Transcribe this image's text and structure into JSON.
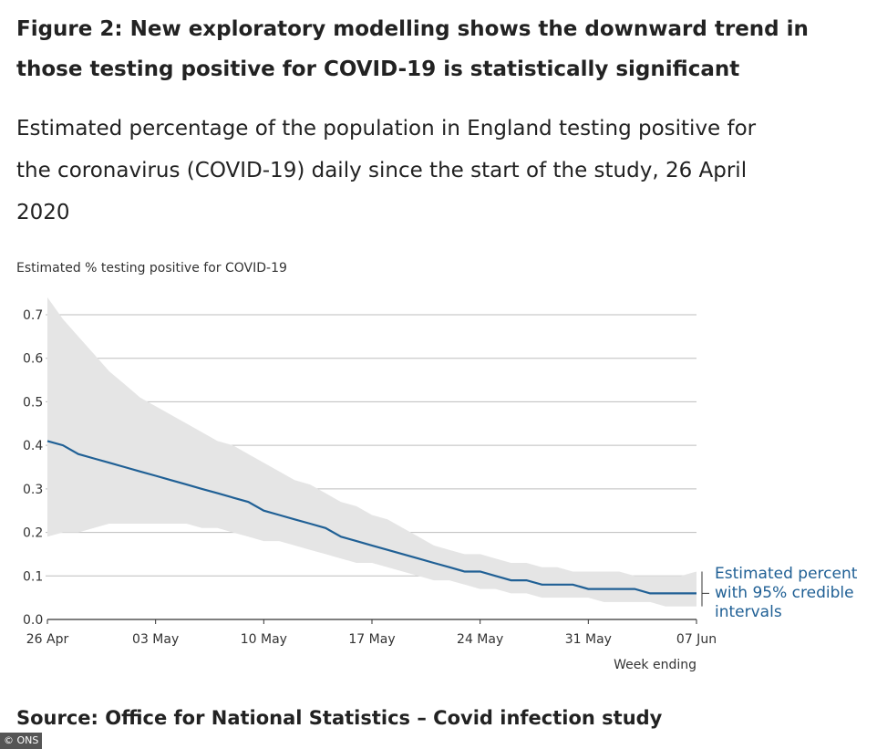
{
  "title": "Figure 2: New exploratory modelling shows the downward trend in those testing positive for COVID-19 is statistically significant",
  "subtitle": "Estimated percentage of the population in England testing positive for the coronavirus (COVID-19) daily since the start of the study, 26 April 2020",
  "source": "Source: Office for National Statistics – Covid infection study",
  "credit": "© ONS",
  "colors": {
    "line": "#206095",
    "band": "#e5e5e5",
    "grid": "#bdbdbd",
    "axis": "#333333"
  },
  "chart_data": {
    "type": "line",
    "ylabel": "Estimated % testing positive for COVID-19",
    "xlabel": "Week ending",
    "ylim": [
      0,
      0.7
    ],
    "yticks": [
      "0.0",
      "0.1",
      "0.2",
      "0.3",
      "0.4",
      "0.5",
      "0.6",
      "0.7"
    ],
    "xlim": [
      "2020-04-26",
      "2020-06-07"
    ],
    "xticks": [
      "26 Apr",
      "03 May",
      "10 May",
      "17 May",
      "24 May",
      "31 May",
      "07 Jun"
    ],
    "grid": true,
    "annotation": [
      "Estimated percent",
      "with 95% credible",
      "intervals"
    ],
    "series": [
      {
        "x": [
          "2020-04-26",
          "2020-04-27",
          "2020-04-28",
          "2020-04-29",
          "2020-04-30",
          "2020-05-01",
          "2020-05-02",
          "2020-05-03",
          "2020-05-04",
          "2020-05-05",
          "2020-05-06",
          "2020-05-07",
          "2020-05-08",
          "2020-05-09",
          "2020-05-10",
          "2020-05-11",
          "2020-05-12",
          "2020-05-13",
          "2020-05-14",
          "2020-05-15",
          "2020-05-16",
          "2020-05-17",
          "2020-05-18",
          "2020-05-19",
          "2020-05-20",
          "2020-05-21",
          "2020-05-22",
          "2020-05-23",
          "2020-05-24",
          "2020-05-25",
          "2020-05-26",
          "2020-05-27",
          "2020-05-28",
          "2020-05-29",
          "2020-05-30",
          "2020-05-31",
          "2020-06-01",
          "2020-06-02",
          "2020-06-03",
          "2020-06-04",
          "2020-06-05",
          "2020-06-06",
          "2020-06-07"
        ],
        "values": [
          0.41,
          0.4,
          0.38,
          0.37,
          0.36,
          0.35,
          0.34,
          0.33,
          0.32,
          0.31,
          0.3,
          0.29,
          0.28,
          0.27,
          0.25,
          0.24,
          0.23,
          0.22,
          0.21,
          0.19,
          0.18,
          0.17,
          0.16,
          0.15,
          0.14,
          0.13,
          0.12,
          0.11,
          0.11,
          0.1,
          0.09,
          0.09,
          0.08,
          0.08,
          0.08,
          0.07,
          0.07,
          0.07,
          0.07,
          0.06,
          0.06,
          0.06,
          0.06
        ],
        "lower": [
          0.19,
          0.2,
          0.2,
          0.21,
          0.22,
          0.22,
          0.22,
          0.22,
          0.22,
          0.22,
          0.21,
          0.21,
          0.2,
          0.19,
          0.18,
          0.18,
          0.17,
          0.16,
          0.15,
          0.14,
          0.13,
          0.13,
          0.12,
          0.11,
          0.1,
          0.09,
          0.09,
          0.08,
          0.07,
          0.07,
          0.06,
          0.06,
          0.05,
          0.05,
          0.05,
          0.05,
          0.04,
          0.04,
          0.04,
          0.04,
          0.03,
          0.03,
          0.03
        ],
        "upper": [
          0.74,
          0.69,
          0.65,
          0.61,
          0.57,
          0.54,
          0.51,
          0.49,
          0.47,
          0.45,
          0.43,
          0.41,
          0.4,
          0.38,
          0.36,
          0.34,
          0.32,
          0.31,
          0.29,
          0.27,
          0.26,
          0.24,
          0.23,
          0.21,
          0.19,
          0.17,
          0.16,
          0.15,
          0.15,
          0.14,
          0.13,
          0.13,
          0.12,
          0.12,
          0.11,
          0.11,
          0.11,
          0.11,
          0.1,
          0.1,
          0.1,
          0.1,
          0.11
        ]
      }
    ]
  }
}
